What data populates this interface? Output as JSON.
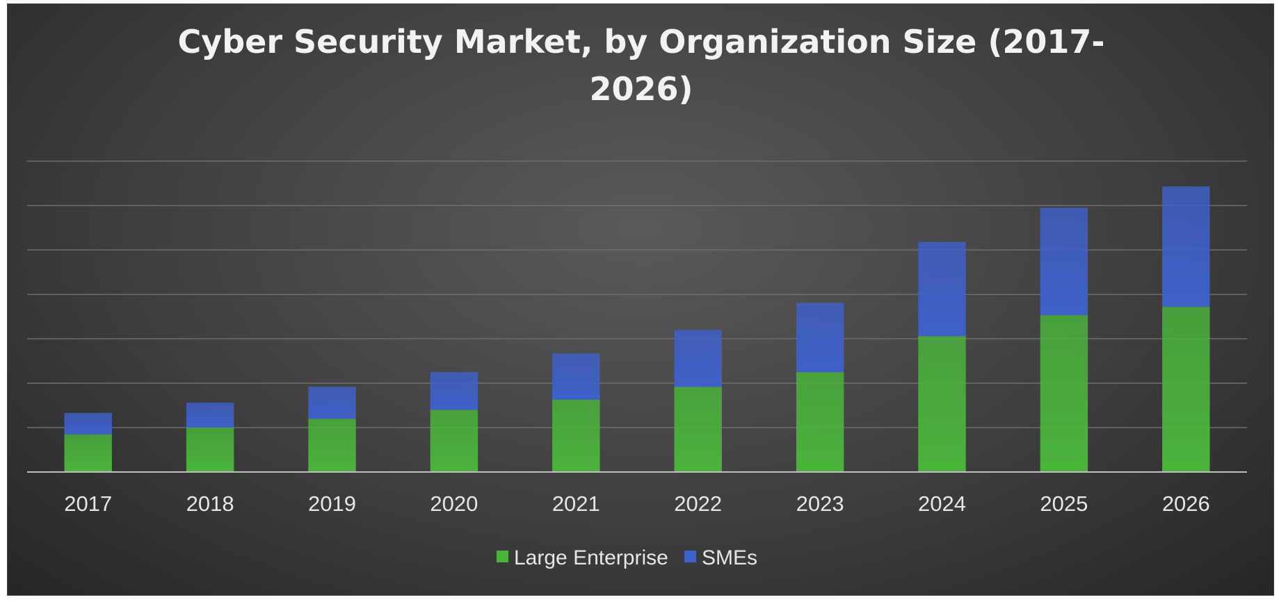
{
  "chart_data": {
    "type": "bar",
    "stacked": true,
    "title": "Cyber Security Market, by Organization Size (2017-2026)",
    "title_lines": [
      "Cyber Security Market, by Organization Size (2017-",
      "2026)"
    ],
    "categories": [
      "2017",
      "2018",
      "2019",
      "2020",
      "2021",
      "2022",
      "2023",
      "2024",
      "2025",
      "2026"
    ],
    "series": [
      {
        "name": "Large Enterprise",
        "color": "#4bb33c",
        "values": [
          0.85,
          1.0,
          1.2,
          1.4,
          1.63,
          1.92,
          2.25,
          3.06,
          3.53,
          3.72
        ]
      },
      {
        "name": "SMEs",
        "color": "#3f60c8",
        "values": [
          0.48,
          0.56,
          0.72,
          0.85,
          1.04,
          1.28,
          1.56,
          2.12,
          2.42,
          2.71
        ]
      }
    ],
    "ylim": [
      0,
      7.2
    ],
    "ygrid_step": 1,
    "grid": true,
    "legend": "bottom-center",
    "xlabel": "",
    "ylabel": ""
  }
}
